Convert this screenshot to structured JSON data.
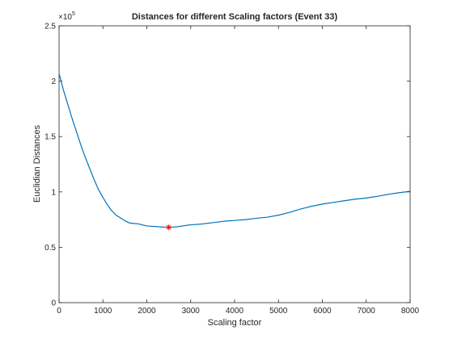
{
  "chart_data": {
    "type": "line",
    "title": "Distances for different Scaling factors (Event 33)",
    "xlabel": "Scaling factor",
    "ylabel": "Euclidian Distances",
    "xlim": [
      0,
      8000
    ],
    "ylim": [
      0,
      250000
    ],
    "x_ticks": [
      0,
      1000,
      2000,
      3000,
      4000,
      5000,
      6000,
      7000,
      8000
    ],
    "x_tick_labels": [
      "0",
      "1000",
      "2000",
      "3000",
      "4000",
      "5000",
      "6000",
      "7000",
      "8000"
    ],
    "y_ticks": [
      0,
      50000,
      100000,
      150000,
      200000,
      250000
    ],
    "y_tick_labels": [
      "0",
      "0.5",
      "1",
      "1.5",
      "2",
      "2.5"
    ],
    "y_exponent_label": "×10",
    "y_exponent_power": "5",
    "grid": false,
    "series": [
      {
        "name": "Euclidian Distances",
        "color": "#0072BD",
        "x": [
          0,
          100,
          200,
          300,
          400,
          500,
          600,
          700,
          800,
          900,
          1000,
          1100,
          1200,
          1300,
          1400,
          1500,
          1600,
          1700,
          1800,
          1900,
          2000,
          2100,
          2200,
          2300,
          2400,
          2500,
          2600,
          2700,
          2800,
          2900,
          3000,
          3250,
          3500,
          3750,
          4000,
          4250,
          4500,
          4750,
          5000,
          5250,
          5500,
          5750,
          6000,
          6250,
          6500,
          6750,
          7000,
          7250,
          7500,
          7750,
          8000
        ],
        "values": [
          207000,
          192000,
          179000,
          166000,
          154000,
          142000,
          131000,
          121000,
          111000,
          102000,
          95000,
          88500,
          83000,
          79000,
          76500,
          74000,
          72000,
          71500,
          71200,
          70200,
          69300,
          69000,
          68800,
          68400,
          68200,
          68000,
          68300,
          68600,
          69200,
          69800,
          70300,
          71000,
          72200,
          73500,
          74200,
          75000,
          76200,
          77200,
          79000,
          81500,
          84500,
          87000,
          89000,
          90500,
          92000,
          93500,
          94500,
          96000,
          97800,
          99300,
          100500
        ]
      }
    ],
    "marker": {
      "x": 2500,
      "y": 68000,
      "symbol": "*",
      "color": "#FF0000"
    }
  }
}
